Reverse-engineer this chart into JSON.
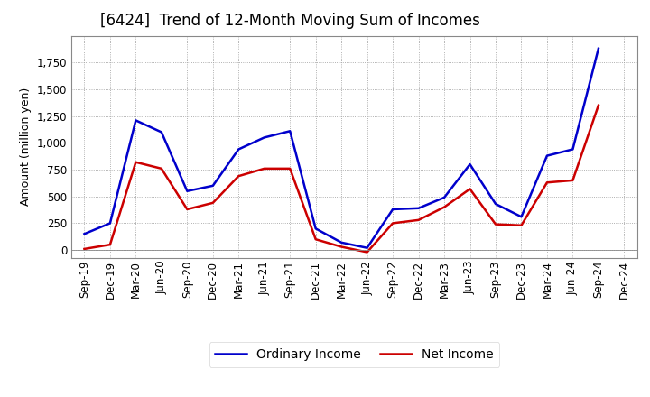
{
  "title": "[6424]  Trend of 12-Month Moving Sum of Incomes",
  "ylabel": "Amount (million yen)",
  "x_labels": [
    "Sep-19",
    "Dec-19",
    "Mar-20",
    "Jun-20",
    "Sep-20",
    "Dec-20",
    "Mar-21",
    "Jun-21",
    "Sep-21",
    "Dec-21",
    "Mar-22",
    "Jun-22",
    "Sep-22",
    "Dec-22",
    "Mar-23",
    "Jun-23",
    "Sep-23",
    "Dec-23",
    "Mar-24",
    "Jun-24",
    "Sep-24",
    "Dec-24"
  ],
  "ordinary_income": [
    150,
    250,
    1210,
    1100,
    550,
    600,
    940,
    1050,
    1110,
    200,
    70,
    20,
    380,
    390,
    490,
    800,
    430,
    310,
    880,
    940,
    1880,
    null
  ],
  "net_income": [
    10,
    50,
    820,
    760,
    380,
    440,
    690,
    760,
    760,
    100,
    30,
    -20,
    250,
    280,
    400,
    570,
    240,
    230,
    630,
    650,
    1350,
    null
  ],
  "ordinary_color": "#0000cc",
  "net_color": "#cc0000",
  "line_width": 1.8,
  "ylim": [
    -75,
    2000
  ],
  "yticks": [
    0,
    250,
    500,
    750,
    1000,
    1250,
    1500,
    1750
  ],
  "background_color": "#ffffff",
  "plot_bg_color": "#ffffff",
  "grid_color": "#999999",
  "title_fontsize": 12,
  "legend_fontsize": 10,
  "tick_fontsize": 8.5
}
